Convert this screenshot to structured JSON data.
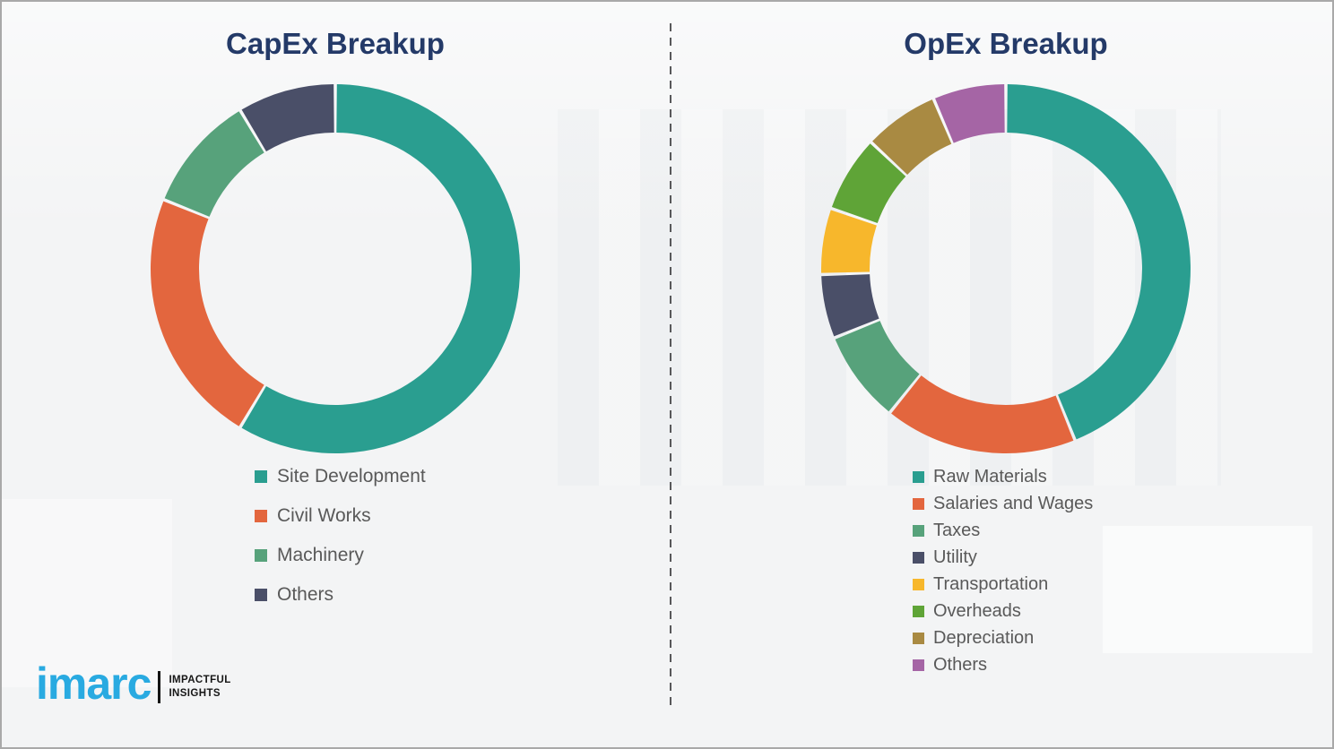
{
  "page": {
    "background_color": "#f3f4f5",
    "border_color": "#a9a9a9",
    "divider_color": "#58585a",
    "title_color": "#243a68",
    "legend_text_color": "#595959"
  },
  "logo": {
    "brand": "imarc",
    "tagline_line1": "IMPACTFUL",
    "tagline_line2": "INSIGHTS",
    "brand_color": "#29aae1"
  },
  "chart_data": [
    {
      "id": "capex",
      "type": "pie",
      "subtype": "donut",
      "title": "CapEx Breakup",
      "labels": [
        "Site Development",
        "Civil Works",
        "Machinery",
        "Others"
      ],
      "values": [
        58.6,
        22.5,
        10.3,
        8.6
      ],
      "colors": [
        "#2a9e90",
        "#e3663e",
        "#57a27b",
        "#4a4f68"
      ],
      "start_angle_deg": 0,
      "direction": "clockwise",
      "inner_radius_ratio": 0.74,
      "legend_position": "below",
      "data_labels_shown": false
    },
    {
      "id": "opex",
      "type": "pie",
      "subtype": "donut",
      "title": "OpEx Breakup",
      "labels": [
        "Raw Materials",
        "Salaries and Wages",
        "Taxes",
        "Utility",
        "Transportation",
        "Overheads",
        "Depreciation",
        "Others"
      ],
      "values": [
        43.9,
        16.9,
        8.1,
        5.6,
        5.8,
        6.7,
        6.6,
        6.4
      ],
      "colors": [
        "#2a9e90",
        "#e3663e",
        "#57a27b",
        "#4a4f68",
        "#f7b72c",
        "#5fa437",
        "#a98a42",
        "#a565a5"
      ],
      "start_angle_deg": 0,
      "direction": "clockwise",
      "inner_radius_ratio": 0.74,
      "legend_position": "below",
      "data_labels_shown": false
    }
  ]
}
